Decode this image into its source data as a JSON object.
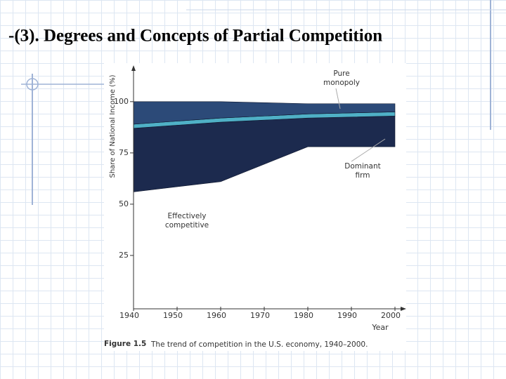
{
  "slide_title": "-(3). Degrees and Concepts of   Partial Competition",
  "chart_data": {
    "type": "area",
    "x": [
      1940,
      1960,
      1980,
      2000
    ],
    "series": [
      {
        "color": "#ffffff",
        "values": [
          56,
          61,
          78,
          78
        ]
      },
      {
        "color": "#1c2a4e",
        "values": [
          31,
          29,
          14,
          15
        ]
      },
      {
        "color": "#4fb0c6",
        "values": [
          2,
          2,
          2,
          2
        ]
      },
      {
        "color": "#2c4a78",
        "values": [
          11,
          8,
          5,
          4
        ]
      }
    ],
    "xlim": [
      1940,
      2000
    ],
    "xticks": [
      1940,
      1950,
      1960,
      1970,
      1980,
      1990,
      2000
    ],
    "ylim": [
      0,
      115
    ],
    "yticks": [
      25,
      50,
      75,
      100
    ],
    "x_label": "Year",
    "y_label": "Share of National Income (%)",
    "annotations": [
      [
        "Pure",
        "monopoly"
      ],
      [
        "Dominant",
        "firm"
      ],
      [
        "Effectively",
        "competitive"
      ]
    ],
    "caption": {
      "figure": "Figure 1.5",
      "text": "The trend of competition in the U.S. economy, 1940–2000."
    }
  }
}
